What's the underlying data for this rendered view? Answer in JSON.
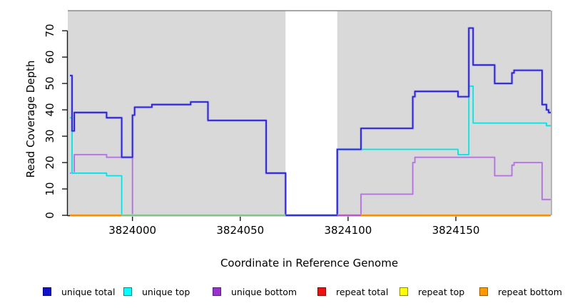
{
  "figure": {
    "plot_bg": "#d9d9d9",
    "outer_bg": "#ffffff",
    "top_border_color": "#8a8a8a",
    "right_border_color": "#b5b5b5",
    "axis_color": "#1a1a1a"
  },
  "x_axis": {
    "label": "Coordinate in Reference Genome",
    "ticks": [
      3824000,
      3824050,
      3824100,
      3824150
    ],
    "tick_labels": [
      "3824000",
      "3824050",
      "3824100",
      "3824150"
    ],
    "range": [
      3823970,
      3824194
    ]
  },
  "y_axis": {
    "label": "Read Coverage Depth",
    "ticks": [
      0,
      10,
      20,
      30,
      40,
      50,
      60,
      70
    ],
    "tick_labels": [
      "0",
      "10",
      "20",
      "30",
      "40",
      "50",
      "60",
      "70"
    ],
    "range": [
      0,
      77.6
    ]
  },
  "chart_data": {
    "type": "line",
    "subtype": "step",
    "title": "",
    "xlabel": "Coordinate in Reference Genome",
    "ylabel": "Read Coverage Depth",
    "xlim": [
      3823970,
      3824194
    ],
    "ylim": [
      0,
      77.6
    ],
    "grid": false,
    "legend_position": "bottom",
    "masked_gap": {
      "from": 3824071,
      "to": 3824095,
      "color": "#ffffff"
    },
    "series": [
      {
        "name": "repeat total",
        "color": "#ee1111",
        "halo": "#f7a0a0",
        "points": [
          [
            3823971,
            0
          ],
          [
            3824194,
            0
          ]
        ]
      },
      {
        "name": "repeat top",
        "color": "#f5f500",
        "halo": "#fafaa0",
        "points": [
          [
            3823971,
            0
          ],
          [
            3824194,
            0
          ]
        ]
      },
      {
        "name": "unique bottom",
        "color": "#b175d8",
        "halo": "#dcc4ef",
        "points": [
          [
            3823971,
            16
          ],
          [
            3823973,
            23
          ],
          [
            3823988,
            22
          ],
          [
            3824000,
            0
          ],
          [
            3824106,
            8
          ],
          [
            3824130,
            20
          ],
          [
            3824131,
            22
          ],
          [
            3824168,
            15
          ],
          [
            3824176,
            19
          ],
          [
            3824177,
            20
          ],
          [
            3824190,
            6
          ],
          [
            3824194,
            6
          ]
        ]
      },
      {
        "name": "unique top",
        "color": "#0fdcdc",
        "halo": "#a8f3f3",
        "points": [
          [
            3823971,
            37
          ],
          [
            3823972,
            16
          ],
          [
            3823988,
            15
          ],
          [
            3823995,
            0
          ],
          [
            3824095,
            25
          ],
          [
            3824151,
            23
          ],
          [
            3824156,
            49
          ],
          [
            3824158,
            35
          ],
          [
            3824192,
            34
          ],
          [
            3824194,
            34
          ]
        ]
      },
      {
        "name": "unique total",
        "color": "#2b22d4",
        "halo": "#8a86ef",
        "points": [
          [
            3823971,
            53
          ],
          [
            3823972,
            32
          ],
          [
            3823973,
            39
          ],
          [
            3823988,
            37
          ],
          [
            3823995,
            22
          ],
          [
            3824000,
            38
          ],
          [
            3824001,
            41
          ],
          [
            3824009,
            42
          ],
          [
            3824027,
            43
          ],
          [
            3824035,
            36
          ],
          [
            3824062,
            16
          ],
          [
            3824071,
            0
          ],
          [
            3824095,
            25
          ],
          [
            3824106,
            33
          ],
          [
            3824130,
            45
          ],
          [
            3824131,
            47
          ],
          [
            3824151,
            45
          ],
          [
            3824156,
            71
          ],
          [
            3824158,
            57
          ],
          [
            3824168,
            50
          ],
          [
            3824176,
            54
          ],
          [
            3824177,
            55
          ],
          [
            3824190,
            42
          ],
          [
            3824192,
            40
          ],
          [
            3824193,
            39
          ],
          [
            3824194,
            39
          ]
        ]
      }
    ],
    "zero_level_segments": [
      {
        "name": "repeat bottom (left)",
        "from": 3823971,
        "to": 3823995,
        "color": "#ff8c00",
        "halo": "#ffcf8e"
      },
      {
        "name": "repeat top + unique top overlap",
        "from": 3823995,
        "to": 3824071,
        "color": "#84c388",
        "halo": "#c4e3c6"
      },
      {
        "name": "unique bottom zero",
        "from": 3824095,
        "to": 3824106,
        "color": "#b459c8",
        "halo": "#dfb3e9"
      },
      {
        "name": "repeat bottom (right)",
        "from": 3824106,
        "to": 3824194,
        "color": "#ff8c00",
        "halo": "#ffcf8e"
      }
    ]
  },
  "legend": {
    "items": [
      {
        "label": "unique total",
        "fill": "#1111cc",
        "border": "#000088"
      },
      {
        "label": "unique top",
        "fill": "#00ffff",
        "border": "#008b8b"
      },
      {
        "label": "unique bottom",
        "fill": "#9932cc",
        "border": "#551a8b"
      },
      {
        "label": "repeat total",
        "fill": "#ee1111",
        "border": "#8b0000"
      },
      {
        "label": "repeat top",
        "fill": "#ffff00",
        "border": "#8b8b00"
      },
      {
        "label": "repeat bottom",
        "fill": "#ff9900",
        "border": "#a05a00"
      }
    ]
  }
}
